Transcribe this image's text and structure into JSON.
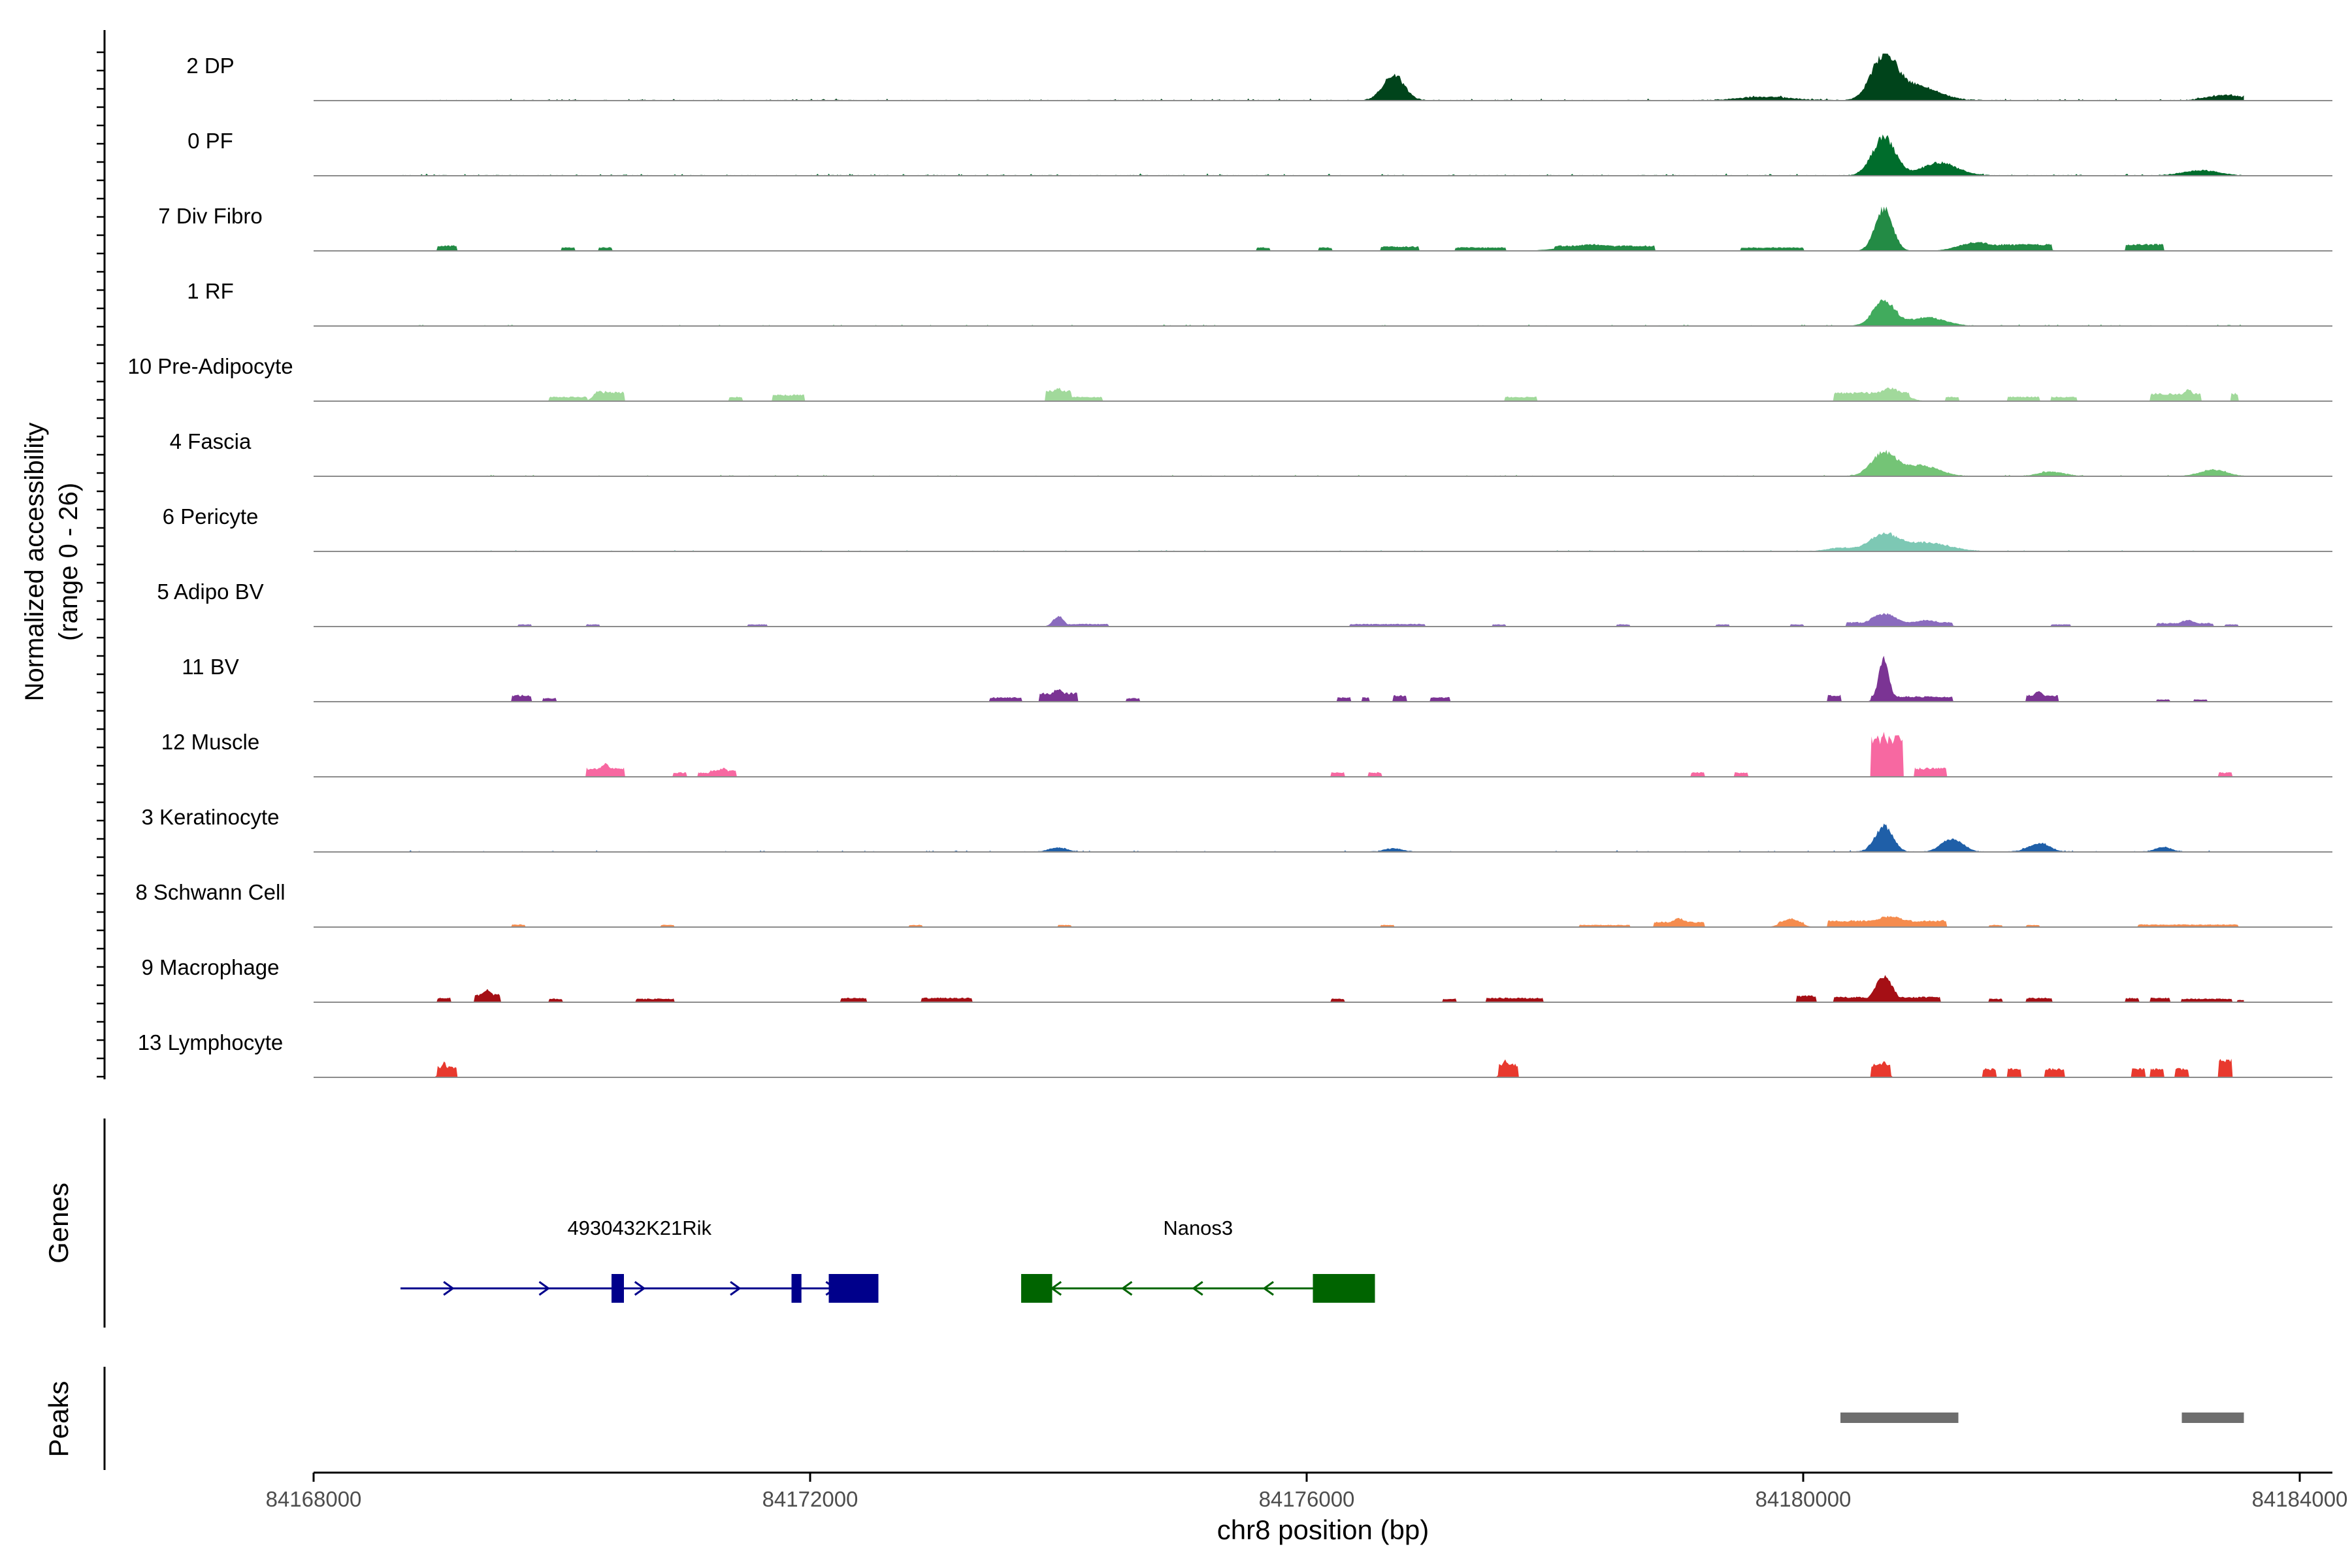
{
  "chart_data": {
    "type": "area",
    "title": "",
    "ylabel": "Normalized accessibility\n(range 0 - 26)",
    "ylim": [
      0,
      26
    ],
    "xlabel": "chr8 position (bp)",
    "xlim": [
      84168000,
      84184000
    ],
    "x_ticks": [
      84168000,
      84172000,
      84176000,
      84180000,
      84184000
    ],
    "x_tick_labels": [
      "84168000",
      "84172000",
      "84176000",
      "84180000",
      "84184000"
    ],
    "series": [
      {
        "name": "2 DP",
        "color": "#00441b",
        "noise": 0.6,
        "start": 84168900,
        "peaks": [
          [
            84176700,
            0.6,
            120
          ],
          [
            84180650,
            1.0,
            140
          ],
          [
            84180900,
            0.35,
            250
          ],
          [
            84179700,
            0.08,
            300
          ],
          [
            84183400,
            0.12,
            200
          ]
        ]
      },
      {
        "name": "0 PF",
        "color": "#006d2c",
        "noise": 0.6,
        "start": 84168700,
        "peaks": [
          [
            84180650,
            0.9,
            130
          ],
          [
            84181100,
            0.3,
            200
          ],
          [
            84183200,
            0.12,
            200
          ]
        ]
      },
      {
        "name": "7 Div Fibro",
        "color": "#238b45",
        "noise": 0.0,
        "start": 84168000,
        "peaks": [
          [
            84169050,
            0.1,
            40
          ],
          [
            84178300,
            0.15,
            300
          ],
          [
            84180650,
            1.0,
            100
          ],
          [
            84181400,
            0.2,
            200
          ],
          [
            84181800,
            0.15,
            150
          ],
          [
            84182700,
            0.15,
            50
          ]
        ],
        "blocks": [
          [
            84169000,
            84169150,
            0.12
          ],
          [
            84170000,
            84170100,
            0.08
          ],
          [
            84170300,
            84170400,
            0.08
          ],
          [
            84175600,
            84175700,
            0.08
          ],
          [
            84176100,
            84176200,
            0.08
          ],
          [
            84176600,
            84176900,
            0.1
          ],
          [
            84177200,
            84177600,
            0.08
          ],
          [
            84178000,
            84178800,
            0.12
          ],
          [
            84179500,
            84180000,
            0.08
          ],
          [
            84181300,
            84182000,
            0.15
          ],
          [
            84182600,
            84182900,
            0.15
          ]
        ]
      },
      {
        "name": "1 RF",
        "color": "#41ab5d",
        "noise": 0.4,
        "start": 84168700,
        "peaks": [
          [
            84180650,
            0.6,
            120
          ],
          [
            84181000,
            0.2,
            200
          ]
        ]
      },
      {
        "name": "10 Pre-Adipocyte",
        "color": "#a1d99b",
        "noise": 0.0,
        "start": 84168000,
        "peaks": [
          [
            84170300,
            0.25,
            60
          ],
          [
            84174000,
            0.3,
            60
          ],
          [
            84180700,
            0.3,
            150
          ],
          [
            84183100,
            0.28,
            60
          ]
        ],
        "blocks": [
          [
            84169900,
            84170200,
            0.1
          ],
          [
            84170300,
            84170500,
            0.22
          ],
          [
            84171350,
            84171450,
            0.1
          ],
          [
            84171700,
            84171950,
            0.15
          ],
          [
            84173900,
            84174100,
            0.25
          ],
          [
            84174100,
            84174350,
            0.1
          ],
          [
            84177600,
            84177850,
            0.1
          ],
          [
            84180250,
            84180850,
            0.2
          ],
          [
            84181150,
            84181250,
            0.1
          ],
          [
            84181650,
            84181900,
            0.1
          ],
          [
            84182000,
            84182200,
            0.1
          ],
          [
            84182800,
            84183200,
            0.18
          ],
          [
            84183450,
            84183500,
            0.18
          ]
        ]
      },
      {
        "name": "4 Fascia",
        "color": "#74c476",
        "noise": 0.4,
        "start": 84168700,
        "peaks": [
          [
            84180650,
            0.55,
            140
          ],
          [
            84180950,
            0.25,
            200
          ],
          [
            84182000,
            0.1,
            150
          ],
          [
            84183300,
            0.15,
            150
          ]
        ]
      },
      {
        "name": "6 Pericyte",
        "color": "#7dc8b4",
        "noise": 0.4,
        "start": 84168700,
        "peaks": [
          [
            84180650,
            0.4,
            160
          ],
          [
            84181000,
            0.2,
            250
          ],
          [
            84180300,
            0.08,
            150
          ]
        ]
      },
      {
        "name": "5 Adipo BV",
        "color": "#8a6bbe",
        "noise": 0.0,
        "start": 84168000,
        "peaks": [
          [
            84174000,
            0.25,
            60
          ],
          [
            84180650,
            0.3,
            150
          ],
          [
            84181000,
            0.15,
            150
          ],
          [
            84183100,
            0.15,
            100
          ]
        ],
        "blocks": [
          [
            84169650,
            84169750,
            0.05
          ],
          [
            84170200,
            84170300,
            0.05
          ],
          [
            84171500,
            84171650,
            0.05
          ],
          [
            84173950,
            84174400,
            0.06
          ],
          [
            84176350,
            84176950,
            0.06
          ],
          [
            84177500,
            84177600,
            0.05
          ],
          [
            84178500,
            84178600,
            0.05
          ],
          [
            84179300,
            84179400,
            0.05
          ],
          [
            84179900,
            84180000,
            0.05
          ],
          [
            84180350,
            84181200,
            0.1
          ],
          [
            84182000,
            84182150,
            0.05
          ],
          [
            84182850,
            84183300,
            0.08
          ],
          [
            84183400,
            84183500,
            0.05
          ]
        ]
      },
      {
        "name": "11 BV",
        "color": "#7b3494",
        "noise": 0.0,
        "start": 84168000,
        "peaks": [
          [
            84180650,
            1.0,
            60
          ],
          [
            84174000,
            0.3,
            80
          ],
          [
            84181900,
            0.25,
            60
          ]
        ],
        "blocks": [
          [
            84169600,
            84169750,
            0.15
          ],
          [
            84169850,
            84169950,
            0.08
          ],
          [
            84173450,
            84173700,
            0.1
          ],
          [
            84173850,
            84174150,
            0.2
          ],
          [
            84174550,
            84174650,
            0.08
          ],
          [
            84176250,
            84176350,
            0.1
          ],
          [
            84176450,
            84176500,
            0.1
          ],
          [
            84176700,
            84176800,
            0.15
          ],
          [
            84177000,
            84177150,
            0.1
          ],
          [
            84180200,
            84180300,
            0.15
          ],
          [
            84180550,
            84180750,
            0.15
          ],
          [
            84180750,
            84181200,
            0.12
          ],
          [
            84181800,
            84182050,
            0.15
          ],
          [
            84182850,
            84182950,
            0.05
          ],
          [
            84183150,
            84183250,
            0.05
          ]
        ]
      },
      {
        "name": "12 Muscle",
        "color": "#f768a1",
        "noise": 0.0,
        "start": 84168000,
        "peaks": [
          [
            84180650,
            1.0,
            50
          ],
          [
            84170350,
            0.3,
            60
          ],
          [
            84171300,
            0.2,
            60
          ]
        ],
        "blocks": [
          [
            84170200,
            84170500,
            0.2
          ],
          [
            84170900,
            84171000,
            0.1
          ],
          [
            84171100,
            84171200,
            0.1
          ],
          [
            84171200,
            84171400,
            0.15
          ],
          [
            84176200,
            84176300,
            0.1
          ],
          [
            84176500,
            84176600,
            0.1
          ],
          [
            84179100,
            84179200,
            0.1
          ],
          [
            84179450,
            84179550,
            0.1
          ],
          [
            84180550,
            84180800,
            0.9
          ],
          [
            84180900,
            84181150,
            0.2
          ],
          [
            84183350,
            84183450,
            0.1
          ]
        ]
      },
      {
        "name": "3 Keratinocyte",
        "color": "#1f5fa8",
        "noise": 0.45,
        "start": 84168700,
        "peaks": [
          [
            84180650,
            0.6,
            100
          ],
          [
            84181200,
            0.3,
            120
          ],
          [
            84181900,
            0.2,
            120
          ],
          [
            84174000,
            0.1,
            100
          ],
          [
            84176700,
            0.08,
            100
          ],
          [
            84182900,
            0.1,
            100
          ]
        ]
      },
      {
        "name": "8 Schwann Cell",
        "color": "#f58c4e",
        "noise": 0.0,
        "start": 84168000,
        "peaks": [
          [
            84180700,
            0.25,
            200
          ],
          [
            84179000,
            0.2,
            100
          ],
          [
            84179900,
            0.2,
            100
          ]
        ],
        "blocks": [
          [
            84169600,
            84169700,
            0.06
          ],
          [
            84170800,
            84170900,
            0.05
          ],
          [
            84172800,
            84172900,
            0.05
          ],
          [
            84174000,
            84174100,
            0.05
          ],
          [
            84176600,
            84176700,
            0.05
          ],
          [
            84178200,
            84178600,
            0.05
          ],
          [
            84178800,
            84179200,
            0.12
          ],
          [
            84179800,
            84180000,
            0.12
          ],
          [
            84180200,
            84181150,
            0.15
          ],
          [
            84181500,
            84181600,
            0.05
          ],
          [
            84181800,
            84181900,
            0.05
          ],
          [
            84182700,
            84183500,
            0.06
          ]
        ]
      },
      {
        "name": "9 Macrophage",
        "color": "#a50f15",
        "noise": 0.0,
        "start": 84168000,
        "peaks": [
          [
            84180650,
            0.6,
            100
          ],
          [
            84169400,
            0.3,
            60
          ]
        ],
        "blocks": [
          [
            84169000,
            84169100,
            0.1
          ],
          [
            84169300,
            84169500,
            0.18
          ],
          [
            84169900,
            84170000,
            0.08
          ],
          [
            84170600,
            84170900,
            0.08
          ],
          [
            84172250,
            84172450,
            0.1
          ],
          [
            84172900,
            84173300,
            0.1
          ],
          [
            84176200,
            84176300,
            0.08
          ],
          [
            84177100,
            84177200,
            0.08
          ],
          [
            84177450,
            84177900,
            0.1
          ],
          [
            84179950,
            84180100,
            0.15
          ],
          [
            84180250,
            84180600,
            0.12
          ],
          [
            84180650,
            84181100,
            0.12
          ],
          [
            84181500,
            84181600,
            0.08
          ],
          [
            84181800,
            84182000,
            0.1
          ],
          [
            84182600,
            84182700,
            0.1
          ],
          [
            84182800,
            84182950,
            0.1
          ],
          [
            84183050,
            84183450,
            0.08
          ],
          [
            84183500,
            84183550,
            0.05
          ]
        ]
      },
      {
        "name": "13 Lymphocyte",
        "color": "#e8392e",
        "noise": 0.0,
        "start": 84168000,
        "peaks": [
          [
            84169050,
            0.35,
            40
          ],
          [
            84177600,
            0.4,
            40
          ],
          [
            84180650,
            0.35,
            40
          ]
        ],
        "blocks": [
          [
            84169000,
            84169150,
            0.25
          ],
          [
            84177550,
            84177700,
            0.3
          ],
          [
            84180550,
            84180700,
            0.3
          ],
          [
            84181450,
            84181550,
            0.2
          ],
          [
            84181650,
            84181750,
            0.2
          ],
          [
            84181950,
            84182100,
            0.2
          ],
          [
            84182650,
            84182750,
            0.2
          ],
          [
            84182800,
            84182900,
            0.2
          ],
          [
            84183000,
            84183100,
            0.2
          ],
          [
            84183350,
            84183450,
            0.4
          ]
        ]
      }
    ],
    "genes": [
      {
        "name": "4930432K21Rik",
        "strand": "+",
        "color": "#00008b",
        "start": 84168700,
        "end": 84172550,
        "exons": [
          [
            84170400,
            84170500
          ],
          [
            84171850,
            84171930
          ],
          [
            84172150,
            84172550
          ]
        ]
      },
      {
        "name": "Nanos3",
        "strand": "-",
        "color": "#006400",
        "start": 84173700,
        "end": 84176550,
        "exons": [
          [
            84173700,
            84173950
          ],
          [
            84176050,
            84176550
          ]
        ]
      }
    ],
    "peaks": [
      [
        84180300,
        84181250
      ],
      [
        84183050,
        84183550
      ]
    ],
    "panel_titles": {
      "genes": "Genes",
      "peaks": "Peaks"
    }
  }
}
